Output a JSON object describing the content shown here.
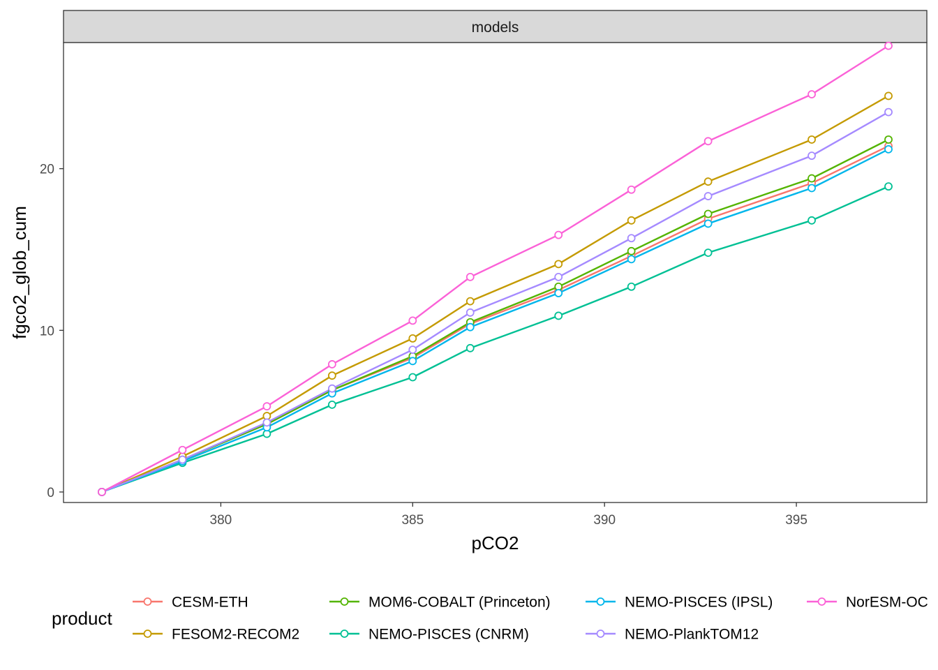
{
  "chart_data": {
    "type": "line",
    "facet_label": "models",
    "xlabel": "pCO2",
    "ylabel": "fgco2_glob_cum",
    "xlim": [
      375.9,
      398.4
    ],
    "ylim": [
      -0.65,
      27.8
    ],
    "x_ticks": [
      380,
      385,
      390,
      395
    ],
    "y_ticks": [
      0,
      10,
      20
    ],
    "grid": false,
    "legend": {
      "title": "product",
      "position": "bottom"
    },
    "x": [
      376.9,
      379.0,
      381.2,
      382.9,
      385.0,
      386.5,
      388.8,
      390.7,
      392.7,
      395.4,
      397.4
    ],
    "series": [
      {
        "name": "CESM-ETH",
        "color": "#F8766D",
        "values": [
          0,
          2.0,
          4.2,
          6.3,
          8.3,
          10.4,
          12.5,
          14.6,
          16.9,
          19.1,
          21.4
        ]
      },
      {
        "name": "FESOM2-RECOM2",
        "color": "#C49A00",
        "values": [
          0,
          2.2,
          4.7,
          7.2,
          9.5,
          11.8,
          14.1,
          16.8,
          19.2,
          21.8,
          24.5
        ]
      },
      {
        "name": "MOM6-COBALT (Princeton)",
        "color": "#53B400",
        "values": [
          0,
          2.0,
          4.2,
          6.3,
          8.4,
          10.5,
          12.7,
          14.9,
          17.2,
          19.4,
          21.8
        ]
      },
      {
        "name": "NEMO-PISCES (CNRM)",
        "color": "#00C094",
        "values": [
          0,
          1.8,
          3.6,
          5.4,
          7.1,
          8.9,
          10.9,
          12.7,
          14.8,
          16.8,
          18.9
        ]
      },
      {
        "name": "NEMO-PISCES (IPSL)",
        "color": "#00B6EB",
        "values": [
          0,
          1.9,
          4.0,
          6.1,
          8.1,
          10.2,
          12.3,
          14.4,
          16.6,
          18.8,
          21.2
        ]
      },
      {
        "name": "NEMO-PlankTOM12",
        "color": "#A58AFF",
        "values": [
          0,
          2.0,
          4.3,
          6.4,
          8.8,
          11.1,
          13.3,
          15.7,
          18.3,
          20.8,
          23.5
        ]
      },
      {
        "name": "NorESM-OC",
        "color": "#FB61D7",
        "values": [
          0,
          2.6,
          5.3,
          7.9,
          10.6,
          13.3,
          15.9,
          18.7,
          21.7,
          24.6,
          27.6
        ]
      }
    ]
  }
}
